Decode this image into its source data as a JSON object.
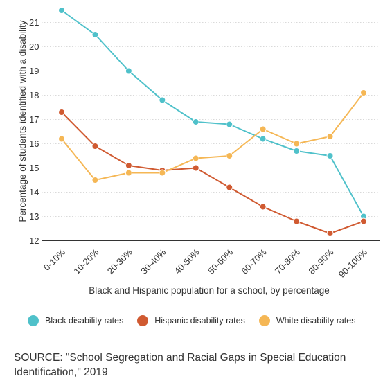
{
  "chart_data": {
    "type": "line",
    "title": "",
    "xlabel": "Black and Hispanic population for a school, by percentage",
    "ylabel": "Percentage of students identified with a disability",
    "categories": [
      "0-10%",
      "10-20%",
      "20-30%",
      "30-40%",
      "40-50%",
      "50-60%",
      "60-70%",
      "70-80%",
      "80-90%",
      "90-100%"
    ],
    "yticks": [
      12,
      13,
      14,
      15,
      16,
      17,
      18,
      19,
      20,
      21
    ],
    "ylim": [
      12,
      21.5
    ],
    "grid": "horizontal",
    "legend_position": "bottom",
    "series": [
      {
        "name": "Black disability rates",
        "color": "#4fc1ca",
        "values": [
          21.5,
          20.5,
          19.0,
          17.8,
          16.9,
          16.8,
          16.2,
          15.7,
          15.5,
          13.0
        ]
      },
      {
        "name": "Hispanic disability rates",
        "color": "#d05a31",
        "values": [
          17.3,
          15.9,
          15.1,
          14.9,
          15.0,
          14.2,
          13.4,
          12.8,
          12.3,
          12.8
        ]
      },
      {
        "name": "White disability rates",
        "color": "#f5b755",
        "values": [
          16.2,
          14.5,
          14.8,
          14.8,
          15.4,
          15.5,
          16.6,
          16.0,
          16.3,
          18.1
        ]
      }
    ]
  },
  "source": "SOURCE: \"School Segregation and Racial Gaps in Special Education Identification,\" 2019"
}
